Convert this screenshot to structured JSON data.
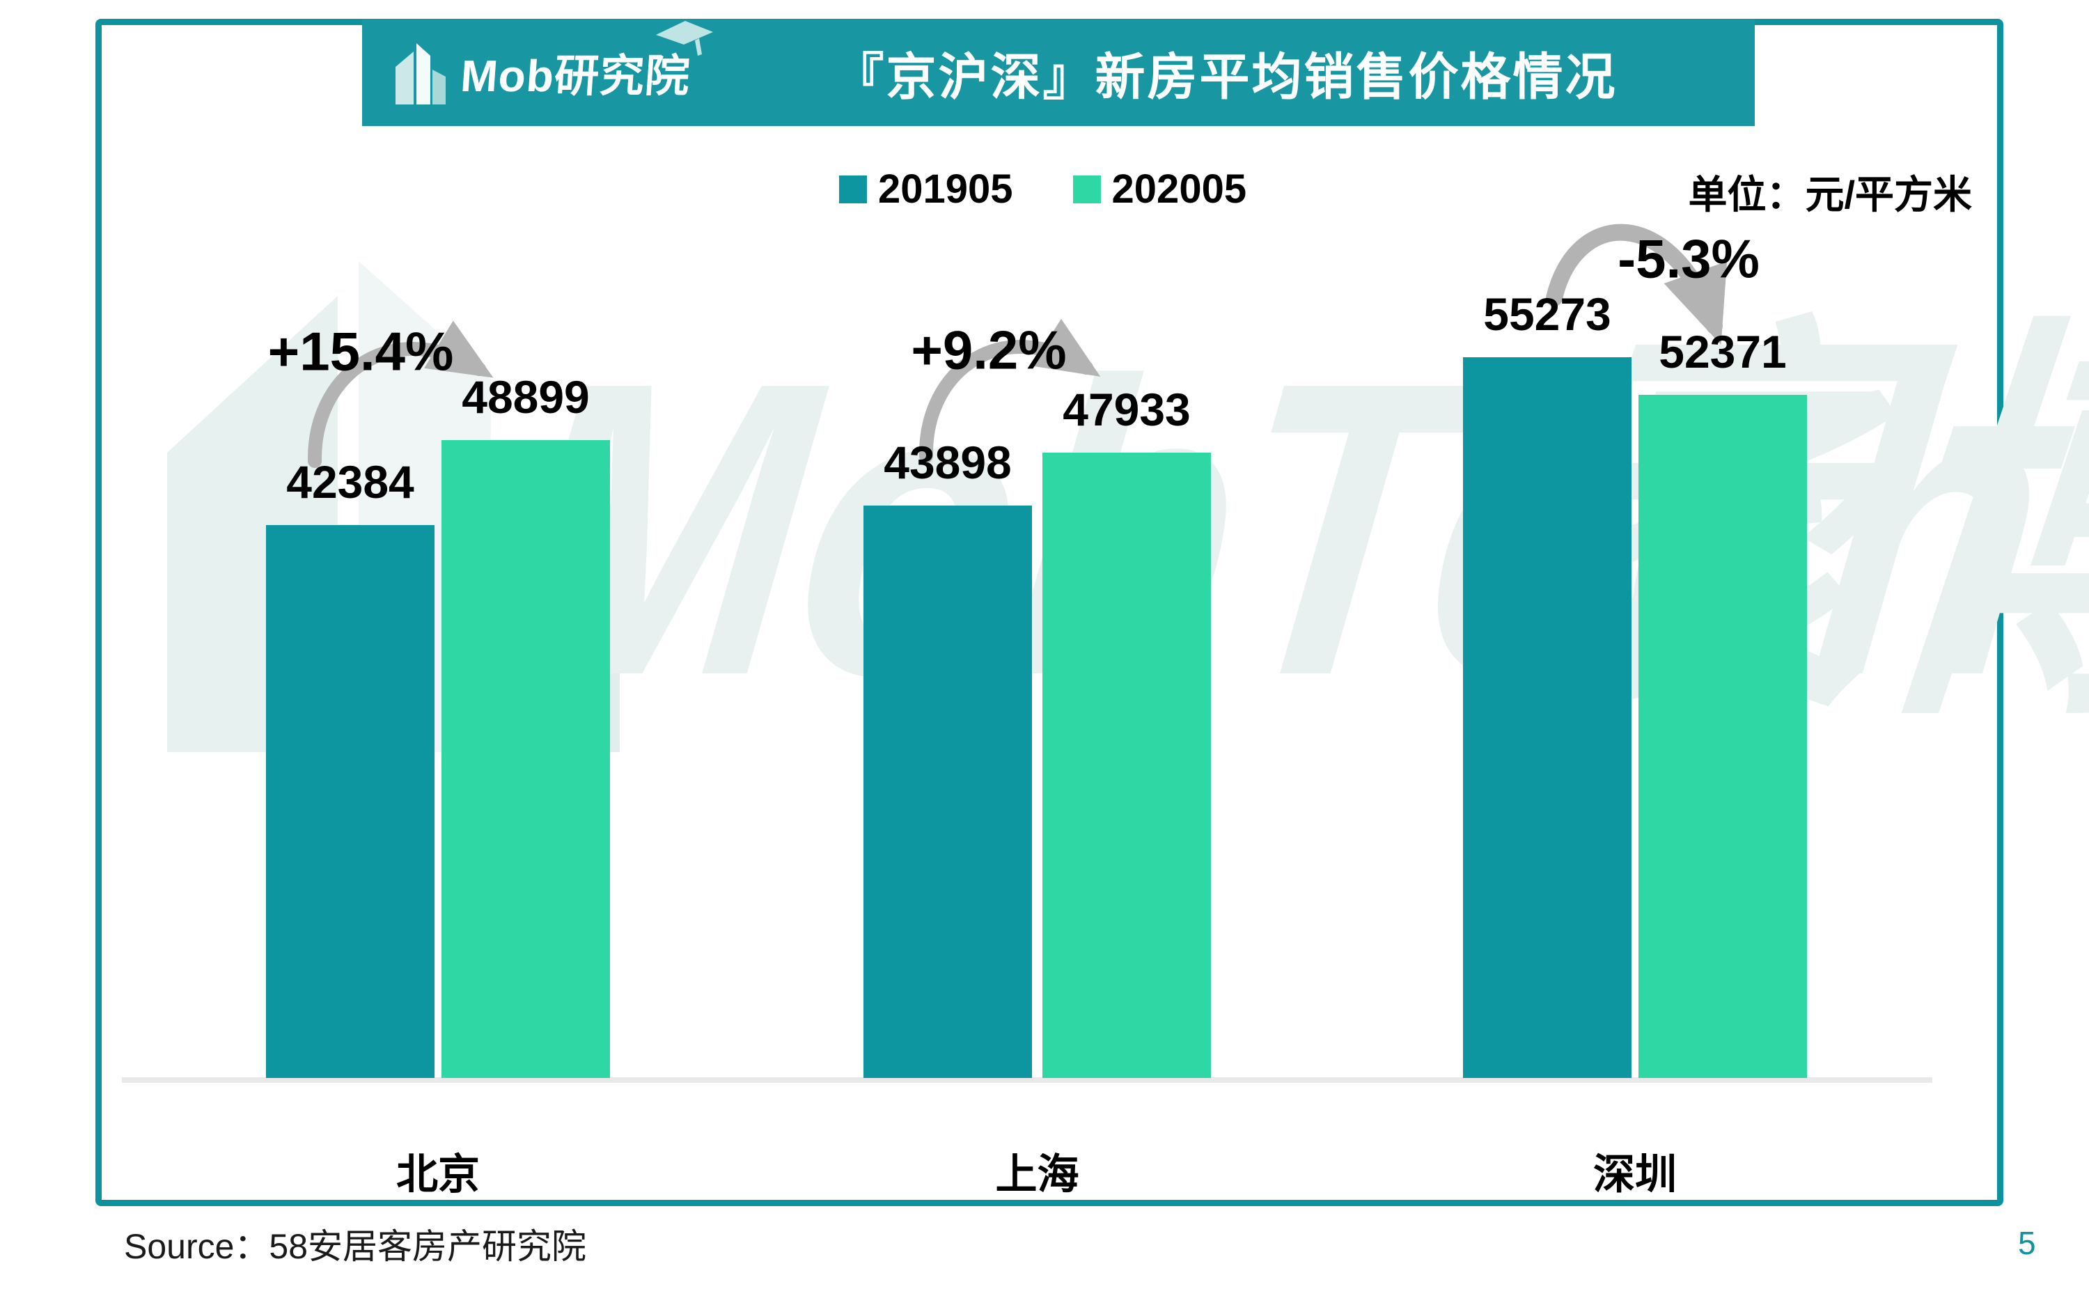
{
  "page": {
    "number": "5"
  },
  "header": {
    "logo_text": "Mob研究院",
    "title": "『京沪深』新房平均销售价格情况"
  },
  "legend": [
    {
      "label": "201905",
      "color": "#0E96A0"
    },
    {
      "label": "202005",
      "color": "#2ED7A4"
    }
  ],
  "unit_label": "单位：元/平方米",
  "source": "Source：58安居客房产研究院",
  "watermark": {
    "latin": "MobTech",
    "cjk": "袤博"
  },
  "colors": {
    "accent_teal": "#0E96A0",
    "series_2019": "#0E96A0",
    "series_2020": "#2ED7A4",
    "header_band": "#1897A2",
    "frame_border": "#0C939E",
    "arrow_gray": "#B3B3B3",
    "axis_line": "#E9E9E9",
    "watermark": "#E8F1F0",
    "page_number": "#1191A2",
    "label_text": "#000000"
  },
  "chart_data": {
    "type": "bar",
    "title": "『京沪深』新房平均销售价格情况",
    "unit": "元/平方米",
    "categories": [
      "北京",
      "上海",
      "深圳"
    ],
    "series": [
      {
        "name": "201905",
        "color": "#0E96A0",
        "values": [
          42384,
          43898,
          55273
        ]
      },
      {
        "name": "202005",
        "color": "#2ED7A4",
        "values": [
          48899,
          47933,
          52371
        ]
      }
    ],
    "change_labels": [
      "+15.4%",
      "+9.2%",
      "-5.3%"
    ],
    "xlabel": "",
    "ylabel": "",
    "ylim": [
      0,
      57000
    ],
    "grid": false,
    "legend_position": "top-center",
    "baseline_value": 0
  }
}
